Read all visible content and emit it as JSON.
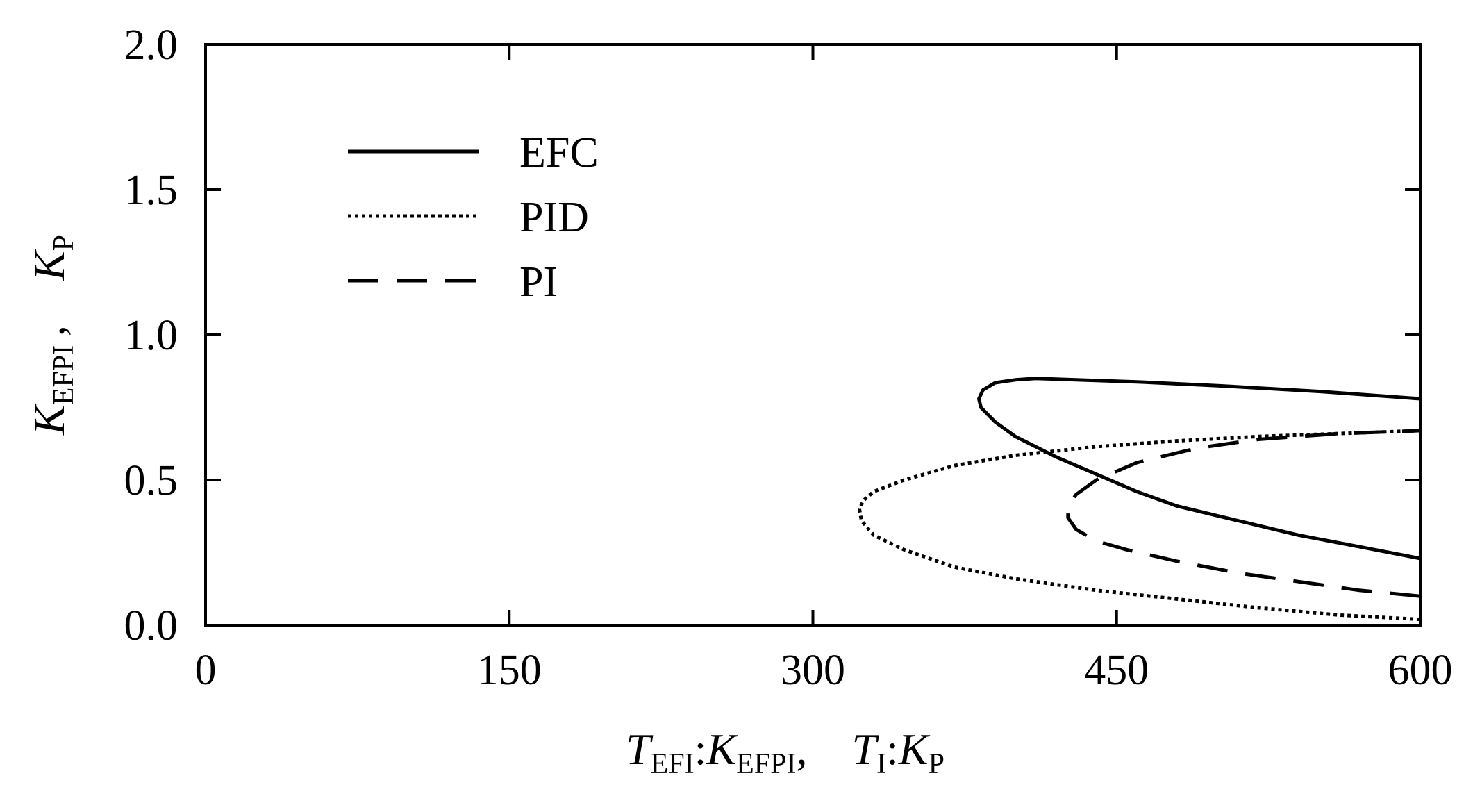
{
  "chart_data": {
    "type": "line",
    "xlabel": {
      "parts": [
        {
          "text": "T",
          "italic": true
        },
        {
          "text": "EFI",
          "sub": true
        },
        {
          "text": ":",
          "italic": false
        },
        {
          "text": "K",
          "italic": true
        },
        {
          "text": "EFPI",
          "sub": true
        },
        {
          "text": ", ",
          "italic": false
        },
        {
          "text": "T",
          "italic": true
        },
        {
          "text": "I",
          "sub": true
        },
        {
          "text": ":",
          "italic": false
        },
        {
          "text": "K",
          "italic": true
        },
        {
          "text": "P",
          "sub": true
        }
      ]
    },
    "ylabel": {
      "parts": [
        {
          "text": "K",
          "italic": true
        },
        {
          "text": "EFPI",
          "sub": true
        },
        {
          "text": " , ",
          "italic": false
        },
        {
          "text": "K",
          "italic": true
        },
        {
          "text": "P",
          "sub": true
        }
      ]
    },
    "xlim": [
      0,
      600
    ],
    "ylim": [
      0.0,
      2.0
    ],
    "xticks": [
      "0",
      "150",
      "300",
      "450",
      "600"
    ],
    "xtick_values": [
      0,
      150,
      300,
      450,
      600
    ],
    "yticks": [
      "0.0",
      "0.5",
      "1.0",
      "1.5",
      "2.0"
    ],
    "ytick_values": [
      0.0,
      0.5,
      1.0,
      1.5,
      2.0
    ],
    "grid": false,
    "legend_position": "top-left",
    "series": [
      {
        "name": "EFC",
        "style": "solid",
        "points": [
          [
            600,
            0.23
          ],
          [
            570,
            0.27
          ],
          [
            540,
            0.31
          ],
          [
            510,
            0.36
          ],
          [
            480,
            0.41
          ],
          [
            460,
            0.46
          ],
          [
            440,
            0.52
          ],
          [
            420,
            0.58
          ],
          [
            400,
            0.65
          ],
          [
            390,
            0.7
          ],
          [
            383,
            0.75
          ],
          [
            382,
            0.78
          ],
          [
            384,
            0.81
          ],
          [
            390,
            0.835
          ],
          [
            400,
            0.845
          ],
          [
            410,
            0.85
          ],
          [
            430,
            0.845
          ],
          [
            460,
            0.838
          ],
          [
            500,
            0.825
          ],
          [
            550,
            0.805
          ],
          [
            600,
            0.78
          ]
        ]
      },
      {
        "name": "PID",
        "style": "dotted",
        "points": [
          [
            600,
            0.02
          ],
          [
            560,
            0.035
          ],
          [
            520,
            0.06
          ],
          [
            480,
            0.09
          ],
          [
            440,
            0.12
          ],
          [
            400,
            0.16
          ],
          [
            370,
            0.2
          ],
          [
            345,
            0.26
          ],
          [
            330,
            0.31
          ],
          [
            324,
            0.36
          ],
          [
            323,
            0.4
          ],
          [
            325,
            0.43
          ],
          [
            330,
            0.46
          ],
          [
            345,
            0.5
          ],
          [
            370,
            0.55
          ],
          [
            400,
            0.585
          ],
          [
            440,
            0.615
          ],
          [
            480,
            0.635
          ],
          [
            520,
            0.65
          ],
          [
            560,
            0.66
          ],
          [
            600,
            0.67
          ]
        ]
      },
      {
        "name": "PI",
        "style": "dashed",
        "points": [
          [
            600,
            0.1
          ],
          [
            570,
            0.12
          ],
          [
            540,
            0.15
          ],
          [
            510,
            0.18
          ],
          [
            480,
            0.22
          ],
          [
            455,
            0.26
          ],
          [
            440,
            0.29
          ],
          [
            430,
            0.33
          ],
          [
            426,
            0.37
          ],
          [
            426,
            0.41
          ],
          [
            430,
            0.45
          ],
          [
            440,
            0.5
          ],
          [
            460,
            0.56
          ],
          [
            490,
            0.61
          ],
          [
            520,
            0.64
          ],
          [
            560,
            0.66
          ],
          [
            600,
            0.67
          ]
        ]
      }
    ]
  }
}
